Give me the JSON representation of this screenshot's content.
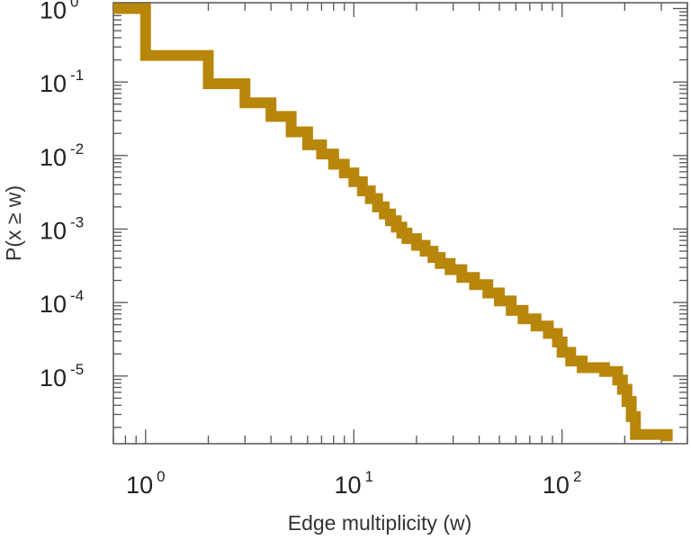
{
  "chart_data": {
    "type": "line",
    "step": true,
    "title": "",
    "xlabel": "Edge multiplicity (w)",
    "ylabel": "P(x ≥ w)",
    "x_scale": "log",
    "y_scale": "log",
    "xlim": [
      0.7,
      400
    ],
    "ylim": [
      1.2e-06,
      1.2
    ],
    "x_ticks": [
      {
        "value": 1,
        "base": "10",
        "exp": "0"
      },
      {
        "value": 10,
        "base": "10",
        "exp": "1"
      },
      {
        "value": 100,
        "base": "10",
        "exp": "2"
      }
    ],
    "y_ticks": [
      {
        "value": 1,
        "base": "10",
        "exp": "0"
      },
      {
        "value": 0.1,
        "base": "10",
        "exp": "-1"
      },
      {
        "value": 0.01,
        "base": "10",
        "exp": "-2"
      },
      {
        "value": 0.001,
        "base": "10",
        "exp": "-3"
      },
      {
        "value": 0.0001,
        "base": "10",
        "exp": "-4"
      },
      {
        "value": 1e-05,
        "base": "10",
        "exp": "-5"
      }
    ],
    "grid": false,
    "legend": "none",
    "series": [
      {
        "color": "#b8860b",
        "points": [
          [
            0.7,
            1.0
          ],
          [
            1,
            1.0
          ],
          [
            1,
            0.23
          ],
          [
            2,
            0.23
          ],
          [
            2,
            0.095
          ],
          [
            3,
            0.095
          ],
          [
            3,
            0.052
          ],
          [
            4,
            0.052
          ],
          [
            4,
            0.034
          ],
          [
            5,
            0.034
          ],
          [
            5,
            0.021
          ],
          [
            6,
            0.021
          ],
          [
            6,
            0.014
          ],
          [
            7,
            0.014
          ],
          [
            7,
            0.0105
          ],
          [
            8,
            0.0105
          ],
          [
            8,
            0.0076
          ],
          [
            9,
            0.0076
          ],
          [
            9,
            0.0058
          ],
          [
            10,
            0.0058
          ],
          [
            10,
            0.0044
          ],
          [
            11,
            0.0044
          ],
          [
            11,
            0.0033
          ],
          [
            12,
            0.0033
          ],
          [
            12,
            0.0026
          ],
          [
            13,
            0.0026
          ],
          [
            13,
            0.002
          ],
          [
            14,
            0.002
          ],
          [
            14,
            0.0016
          ],
          [
            15,
            0.0016
          ],
          [
            15,
            0.0013
          ],
          [
            16,
            0.0013
          ],
          [
            16,
            0.00106
          ],
          [
            17,
            0.00106
          ],
          [
            17,
            0.00088
          ],
          [
            18,
            0.00088
          ],
          [
            18,
            0.00074
          ],
          [
            20,
            0.00074
          ],
          [
            20,
            0.0006
          ],
          [
            22,
            0.0006
          ],
          [
            22,
            0.0005
          ],
          [
            24,
            0.0005
          ],
          [
            24,
            0.00041
          ],
          [
            26,
            0.00041
          ],
          [
            26,
            0.00034
          ],
          [
            29,
            0.00034
          ],
          [
            29,
            0.00028
          ],
          [
            33,
            0.00028
          ],
          [
            33,
            0.00022
          ],
          [
            38,
            0.00022
          ],
          [
            38,
            0.000175
          ],
          [
            44,
            0.000175
          ],
          [
            44,
            0.000135
          ],
          [
            50,
            0.000135
          ],
          [
            50,
            0.000105
          ],
          [
            57,
            0.000105
          ],
          [
            57,
            7.8e-05
          ],
          [
            65,
            7.8e-05
          ],
          [
            65,
            6e-05
          ],
          [
            75,
            6e-05
          ],
          [
            75,
            4.8e-05
          ],
          [
            86,
            4.8e-05
          ],
          [
            86,
            3.8e-05
          ],
          [
            95,
            3.8e-05
          ],
          [
            95,
            2.9e-05
          ],
          [
            100,
            2.9e-05
          ],
          [
            100,
            2.1e-05
          ],
          [
            110,
            2.1e-05
          ],
          [
            110,
            1.6e-05
          ],
          [
            125,
            1.6e-05
          ],
          [
            125,
            1.3e-05
          ],
          [
            160,
            1.3e-05
          ],
          [
            160,
            1.15e-05
          ],
          [
            185,
            1.15e-05
          ],
          [
            185,
            8.8e-06
          ],
          [
            195,
            8.8e-06
          ],
          [
            195,
            6.6e-06
          ],
          [
            205,
            6.6e-06
          ],
          [
            205,
            4.5e-06
          ],
          [
            215,
            4.5e-06
          ],
          [
            215,
            2.8e-06
          ],
          [
            225,
            2.8e-06
          ],
          [
            225,
            1.6e-06
          ],
          [
            320,
            1.6e-06
          ],
          [
            320,
            1.3e-06
          ]
        ]
      }
    ]
  }
}
